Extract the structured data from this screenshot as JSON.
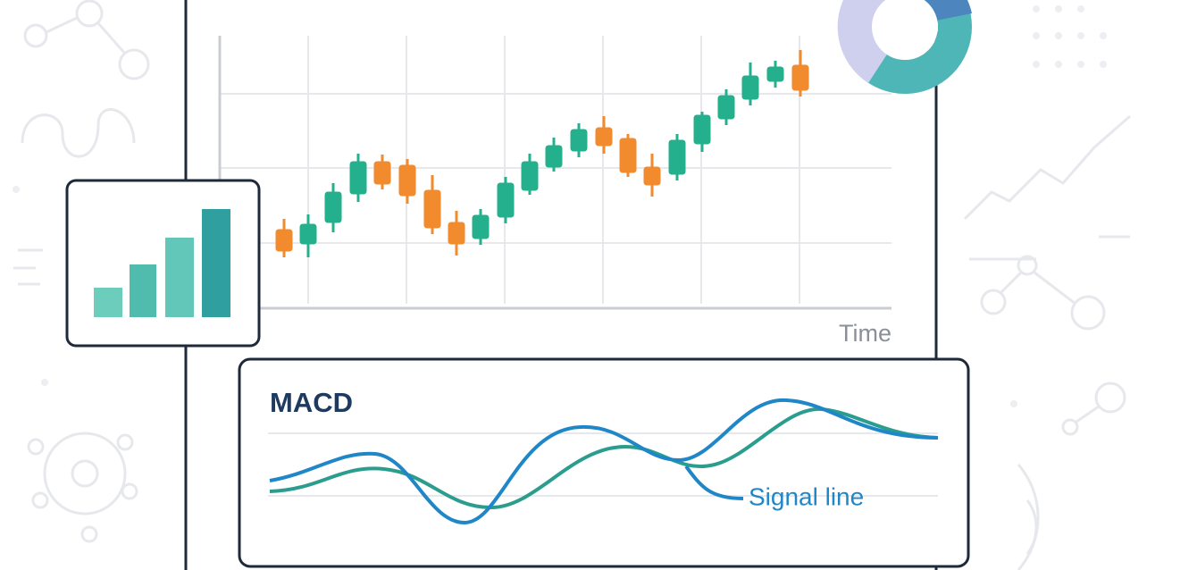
{
  "x_axis_label": "Time",
  "macd_panel": {
    "title": "MACD",
    "annotation": "Signal line"
  }
}
